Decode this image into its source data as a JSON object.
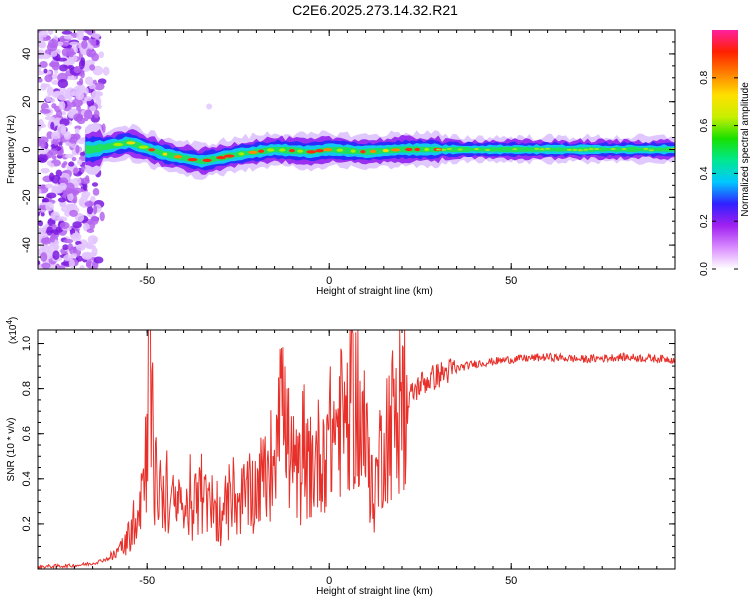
{
  "title": "C2E6.2025.273.14.32.R21",
  "colors": {
    "snr_line": "#e8302a",
    "axis": "#000000",
    "background": "#ffffff"
  },
  "chart_data": [
    {
      "type": "heatmap",
      "name": "spectrogram",
      "xlabel": "Height of straight line (km)",
      "ylabel": "Frequency (Hz)",
      "xlim": [
        -80,
        95
      ],
      "ylim": [
        -50,
        50
      ],
      "x_ticks": [
        -50,
        0,
        50
      ],
      "y_ticks": [
        -40,
        -20,
        0,
        20,
        40
      ],
      "x_tick_labels": [
        "-50",
        "0",
        "50"
      ],
      "y_tick_labels": [
        "-40",
        "-20",
        "0",
        "20",
        "40"
      ],
      "colorbar": {
        "label": "Normalized spectral amplitude",
        "range": [
          0,
          1
        ],
        "ticks": [
          0.0,
          0.2,
          0.4,
          0.6,
          0.8
        ],
        "tick_labels": [
          "0.0",
          "0.2",
          "0.4",
          "0.6",
          "0.8"
        ],
        "colormap": [
          "#ffffff",
          "#d98bff",
          "#a020f0",
          "#3020ff",
          "#00c8ff",
          "#00e890",
          "#18e000",
          "#c8f000",
          "#ffe000",
          "#ff8000",
          "#ff2000",
          "#ff20a0"
        ]
      },
      "description_note": "narrow band near 0 Hz, noisy scatter below -63 km",
      "band_center_hz": [
        {
          "x": -65,
          "y": 0
        },
        {
          "x": -55,
          "y": 3
        },
        {
          "x": -45,
          "y": -2
        },
        {
          "x": -35,
          "y": -5
        },
        {
          "x": -25,
          "y": -2
        },
        {
          "x": -15,
          "y": 0
        },
        {
          "x": -5,
          "y": -1
        },
        {
          "x": 0,
          "y": 0
        },
        {
          "x": 10,
          "y": -1
        },
        {
          "x": 20,
          "y": 0
        },
        {
          "x": 40,
          "y": 0
        },
        {
          "x": 95,
          "y": 0
        }
      ]
    },
    {
      "type": "line",
      "name": "snr",
      "xlabel": "Height of straight line (km)",
      "ylabel": "SNR (10 * v/v)",
      "multiplier_label": "(x10",
      "multiplier_exp": "4",
      "multiplier_close": ")",
      "xlim": [
        -80,
        95
      ],
      "ylim": [
        0,
        1.06
      ],
      "x_ticks": [
        -50,
        0,
        50
      ],
      "y_ticks": [
        0.2,
        0.4,
        0.6,
        0.8,
        1.0
      ],
      "x_tick_labels": [
        "-50",
        "0",
        "50"
      ],
      "y_tick_labels": [
        "0.2",
        "0.4",
        "0.6",
        "0.8",
        "1.0"
      ],
      "series": [
        {
          "name": "SNR",
          "color": "#e8302a",
          "x": [
            -80,
            -70,
            -65,
            -60,
            -57,
            -55,
            -52,
            -50,
            -49.5,
            -48,
            -45,
            -40,
            -35,
            -30,
            -25,
            -20,
            -15,
            -14,
            -10,
            -5,
            0,
            5,
            7,
            10,
            12,
            15,
            20,
            25,
            30,
            35,
            40,
            50,
            60,
            70,
            80,
            95
          ],
          "y": [
            0.01,
            0.015,
            0.025,
            0.05,
            0.09,
            0.15,
            0.3,
            0.55,
            1.05,
            0.4,
            0.3,
            0.25,
            0.3,
            0.22,
            0.3,
            0.35,
            0.5,
            0.9,
            0.4,
            0.45,
            0.58,
            0.7,
            0.75,
            0.55,
            0.3,
            0.6,
            0.72,
            0.82,
            0.86,
            0.89,
            0.91,
            0.93,
            0.94,
            0.93,
            0.94,
            0.93
          ]
        }
      ]
    }
  ]
}
